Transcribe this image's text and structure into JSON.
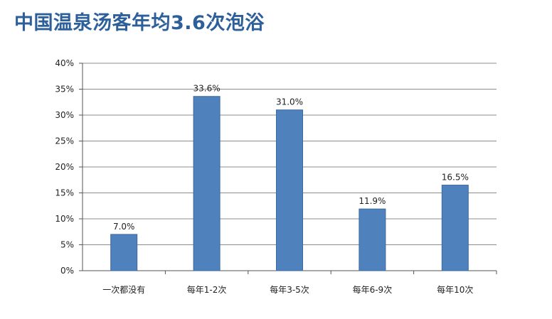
{
  "title": "中国温泉汤客年均3.6次泡浴",
  "chart_data": {
    "type": "bar",
    "title": "中国温泉汤客年均3.6次泡浴",
    "categories": [
      "一次都没有",
      "每年1-2次",
      "每年3-5次",
      "每年6-9次",
      "每年10次"
    ],
    "values": [
      7.0,
      33.6,
      31.0,
      11.9,
      16.5
    ],
    "data_labels": [
      "7.0%",
      "33.6%",
      "31.0%",
      "11.9%",
      "16.5%"
    ],
    "yticks": [
      0,
      5,
      10,
      15,
      20,
      25,
      30,
      35,
      40
    ],
    "ytick_labels": [
      "0%",
      "5%",
      "10%",
      "15%",
      "20%",
      "25%",
      "30%",
      "35%",
      "40%"
    ],
    "ylim": [
      0,
      40
    ],
    "grid": true,
    "legend": "none",
    "bar_color": "#4f81bd",
    "grid_color": "#8c8c8c",
    "xlabel": "",
    "ylabel": ""
  }
}
